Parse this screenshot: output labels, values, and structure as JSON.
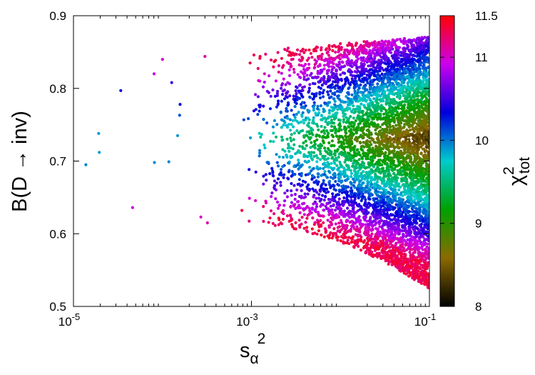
{
  "chart_data": {
    "type": "scatter",
    "title": "",
    "xlabel": {
      "base": "s",
      "subscript": "α",
      "superscript": "2"
    },
    "ylabel": {
      "prefix": "B(D ",
      "arrow": "→",
      "suffix": " inv)"
    },
    "colorbar_label": {
      "base": "χ",
      "superscript": "2",
      "subscript": "tot"
    },
    "x_scale": "log",
    "xlim": [
      1e-05,
      0.1
    ],
    "ylim": [
      0.5,
      0.9
    ],
    "x_ticks": [
      {
        "value": 1e-05,
        "base": "10",
        "exp": "-5"
      },
      {
        "value": 0.001,
        "base": "10",
        "exp": "-3"
      },
      {
        "value": 0.1,
        "base": "10",
        "exp": "-1"
      }
    ],
    "y_ticks": [
      "0.5",
      "0.6",
      "0.7",
      "0.8",
      "0.9"
    ],
    "colorbar": {
      "range": [
        8,
        11.5
      ],
      "ticks": [
        "8",
        "9",
        "10",
        "11",
        "11.5"
      ],
      "colors": [
        "#000000",
        "#8a6a00",
        "#00a000",
        "#00cccc",
        "#0000dd",
        "#cc00ee",
        "#ff0000"
      ]
    },
    "grid": false,
    "legend": "none",
    "region": {
      "description": "band of points; scattered at low x, dense near x=0.09",
      "points_sample": [
        {
          "x": 1.38e-05,
          "y": 0.695,
          "z": 9.95
        },
        {
          "x": 1.92e-05,
          "y": 0.738,
          "z": 9.9
        },
        {
          "x": 1.95e-05,
          "y": 0.712,
          "z": 9.9
        },
        {
          "x": 3.4e-05,
          "y": 0.797,
          "z": 10.35
        },
        {
          "x": 4.62e-05,
          "y": 0.636,
          "z": 10.95
        },
        {
          "x": 8.05e-05,
          "y": 0.82,
          "z": 10.9
        },
        {
          "x": 8.12e-05,
          "y": 0.698,
          "z": 9.95
        },
        {
          "x": 0.0001,
          "y": 0.84,
          "z": 11.0
        },
        {
          "x": 0.000118,
          "y": 0.699,
          "z": 9.95
        },
        {
          "x": 0.000127,
          "y": 0.808,
          "z": 10.5
        },
        {
          "x": 0.000148,
          "y": 0.735,
          "z": 9.9
        },
        {
          "x": 0.000156,
          "y": 0.763,
          "z": 10.1
        },
        {
          "x": 0.000158,
          "y": 0.778,
          "z": 10.3
        },
        {
          "x": 0.00027,
          "y": 0.623,
          "z": 11.0
        },
        {
          "x": 0.0003,
          "y": 0.844,
          "z": 11.1
        },
        {
          "x": 0.00032,
          "y": 0.615,
          "z": 11.1
        }
      ]
    }
  }
}
